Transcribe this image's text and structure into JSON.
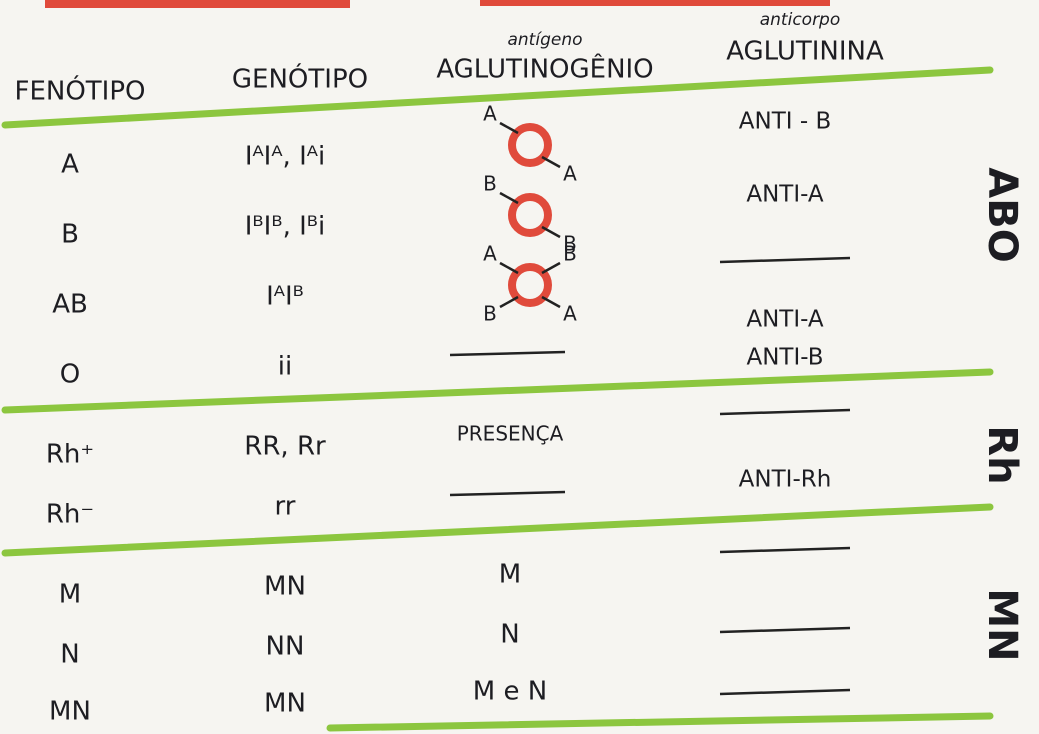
{
  "headers": {
    "phenotype": "FENÓTIPO",
    "genotype": "GENÓTIPO",
    "antigen_note": "antígeno",
    "antigen": "AGLUTINOGÊNIO",
    "antibody_note": "anticorpo",
    "antibody": "AGLUTININA"
  },
  "groups": [
    {
      "label": "ABO",
      "rows": [
        {
          "phenotype": "A",
          "genotype": "IᴬIᴬ, Iᴬi",
          "antigen_labels": [
            "A",
            "A"
          ],
          "antibody": [
            "ANTI - B"
          ]
        },
        {
          "phenotype": "B",
          "genotype": "IᴮIᴮ, Iᴮi",
          "antigen_labels": [
            "B",
            "B"
          ],
          "antibody": [
            "ANTI-A"
          ]
        },
        {
          "phenotype": "AB",
          "genotype": "IᴬIᴮ",
          "antigen_labels": [
            "A",
            "B",
            "B",
            "A"
          ]
        },
        {
          "phenotype": "O",
          "genotype": "ii",
          "antibody": [
            "ANTI-A",
            "ANTI-B"
          ]
        }
      ]
    },
    {
      "label": "Rh",
      "rows": [
        {
          "phenotype": "Rh⁺",
          "genotype": "RR, Rr",
          "antigen": "PRESENÇA"
        },
        {
          "phenotype": "Rh⁻",
          "genotype": "rr",
          "antibody": [
            "ANTI-Rh"
          ]
        }
      ]
    },
    {
      "label": "MN",
      "rows": [
        {
          "phenotype": "M",
          "genotype": "MN",
          "antigen": "M"
        },
        {
          "phenotype": "N",
          "genotype": "NN",
          "antigen": "N"
        },
        {
          "phenotype": "MN",
          "genotype": "MN",
          "antigen": "M e N"
        }
      ]
    }
  ]
}
